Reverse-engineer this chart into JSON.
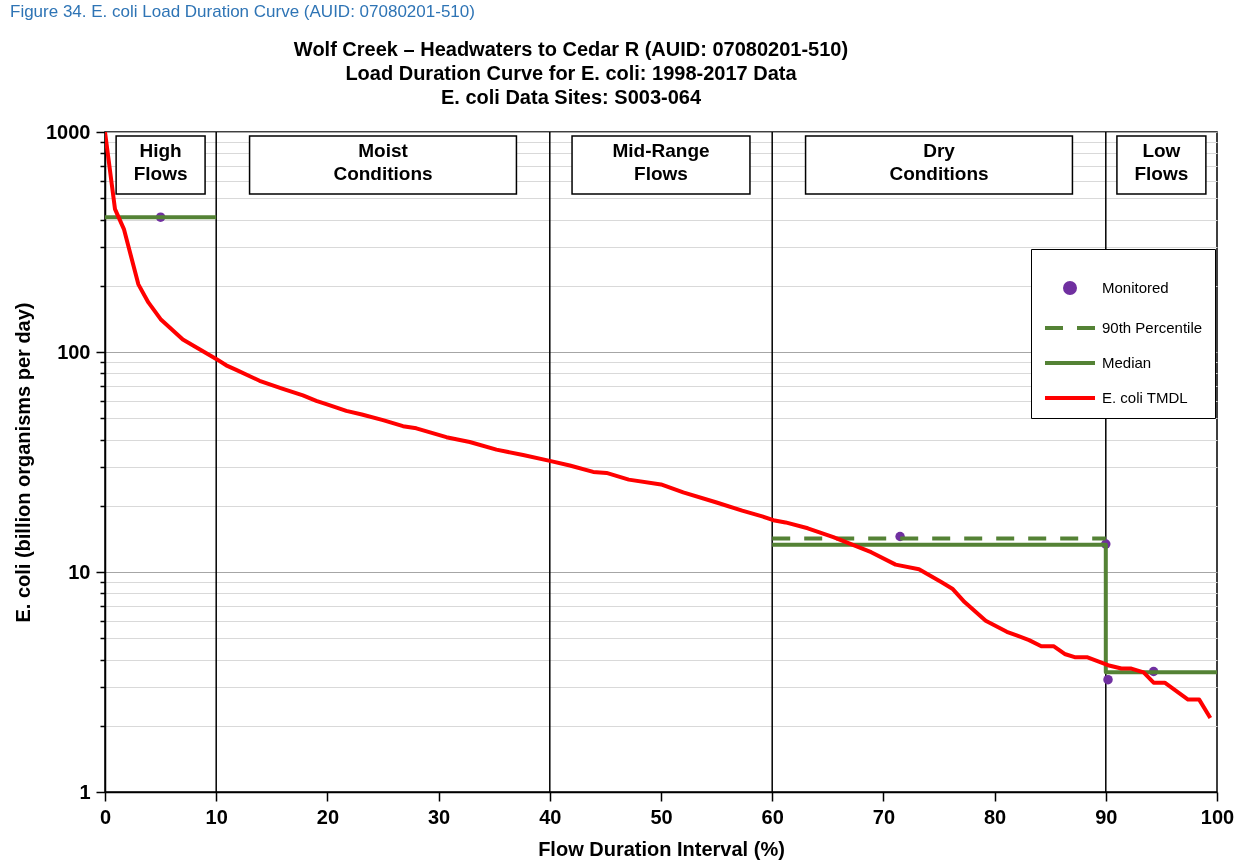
{
  "chart_data": {
    "type": "line",
    "title": "Wolf Creek – Headwaters to Cedar R (AUID: 07080201-510)\nLoad Duration Curve for E. coli: 1998-2017 Data\nE. coli Data Sites: S003-064",
    "xlabel": "Flow Duration Interval (%)",
    "ylabel": "E. coli (billion organisms per day)",
    "xlim": [
      0,
      100
    ],
    "xticks": [
      0,
      10,
      20,
      30,
      40,
      50,
      60,
      70,
      80,
      90,
      100
    ],
    "ylim": [
      1,
      1000
    ],
    "yticks": [
      1,
      {
        "value": 2,
        "label": null
      },
      {
        "value": 3,
        "label": null
      },
      {
        "value": 4,
        "label": null
      },
      {
        "value": 5,
        "label": null
      },
      {
        "value": 6,
        "label": null
      },
      {
        "value": 7,
        "label": null
      },
      {
        "value": 8,
        "label": null
      },
      {
        "value": 9,
        "label": null
      },
      10,
      {
        "value": 20,
        "label": null
      },
      {
        "value": 30,
        "label": null
      },
      {
        "value": 40,
        "label": null
      },
      {
        "value": 50,
        "label": null
      },
      {
        "value": 60,
        "label": null
      },
      {
        "value": 70,
        "label": null
      },
      {
        "value": 80,
        "label": null
      },
      {
        "value": 90,
        "label": null
      },
      100,
      {
        "value": 200,
        "label": null
      },
      {
        "value": 300,
        "label": null
      },
      {
        "value": 400,
        "label": null
      },
      {
        "value": 500,
        "label": null
      },
      {
        "value": 600,
        "label": null
      },
      {
        "value": 700,
        "label": null
      },
      {
        "value": 800,
        "label": null
      },
      {
        "value": 900,
        "label": null
      },
      1000
    ],
    "log": "y",
    "grid": "y",
    "legend": "top right",
    "series": [
      {
        "name": "Monitored",
        "type": "scatter",
        "marker": "circle",
        "color": "#7030a0",
        "x": [
          5,
          71.5,
          90.0,
          90.2,
          94.3
        ],
        "values": [
          410,
          14.5,
          13.4,
          3.24,
          3.53
        ]
      },
      {
        "name": "90th Percentile",
        "line_style": "dashed",
        "color": "#548235",
        "x": [
          60,
          90
        ],
        "values": [
          14.2,
          14.2
        ]
      },
      {
        "name": "Median",
        "color": "#548235",
        "x": [
          0,
          10,
          null,
          60,
          90,
          90,
          100
        ],
        "values": [
          410,
          410,
          null,
          13.3,
          13.3,
          3.5,
          3.5
        ]
      },
      {
        "name": "E. coli TMDL",
        "color": "#ff0000",
        "x": [
          0,
          0.9,
          1.7,
          3.0,
          3.9,
          5.0,
          7.0,
          8.5,
          10.0,
          10.9,
          11.8,
          13.9,
          16.0,
          17.8,
          19.0,
          19.9,
          21.7,
          23.1,
          25.0,
          26.8,
          28.0,
          30.7,
          32.8,
          35.2,
          37.6,
          40.0,
          41.8,
          43.9,
          45.1,
          47.1,
          50.0,
          52.0,
          55.0,
          57.3,
          59.1,
          60.1,
          61.2,
          63.2,
          65.5,
          68.9,
          71.1,
          73.2,
          75.2,
          76.2,
          77.3,
          79.2,
          81.1,
          83.1,
          84.2,
          85.3,
          86.3,
          87.2,
          88.3,
          90.2,
          91.4,
          92.3,
          93.4,
          94.3,
          95.3,
          97.4,
          98.4,
          99.4
        ],
        "values": [
          1000,
          446,
          362,
          203,
          168,
          141,
          114,
          103,
          93,
          87,
          83,
          74,
          68,
          63.5,
          60,
          58,
          54,
          52,
          49,
          46,
          45,
          41,
          39,
          36,
          34,
          32,
          30.5,
          28.5,
          28.2,
          26.3,
          25,
          23,
          20.7,
          19,
          17.9,
          17.2,
          16.8,
          15.8,
          14.4,
          12.3,
          10.8,
          10.3,
          9.0,
          8.4,
          7.3,
          6.0,
          5.35,
          4.9,
          4.6,
          4.6,
          4.24,
          4.1,
          4.1,
          3.77,
          3.64,
          3.64,
          3.5,
          3.14,
          3.14,
          2.63,
          2.63,
          2.17
        ]
      }
    ],
    "ref_lines": [
      {
        "axis": "x",
        "value": 10,
        "color": "#000000"
      },
      {
        "axis": "x",
        "value": 40,
        "color": "#000000"
      },
      {
        "axis": "x",
        "value": 60,
        "color": "#000000"
      },
      {
        "axis": "x",
        "value": 90,
        "color": "#000000"
      }
    ],
    "annotations": [
      "Figure 34. E. coli Load Duration Curve (AUID: 07080201-510)",
      "High\nFlows",
      "Moist\nConditions",
      "Mid-Range\nFlows",
      "Dry\nConditions",
      "Low\nFlows"
    ]
  }
}
